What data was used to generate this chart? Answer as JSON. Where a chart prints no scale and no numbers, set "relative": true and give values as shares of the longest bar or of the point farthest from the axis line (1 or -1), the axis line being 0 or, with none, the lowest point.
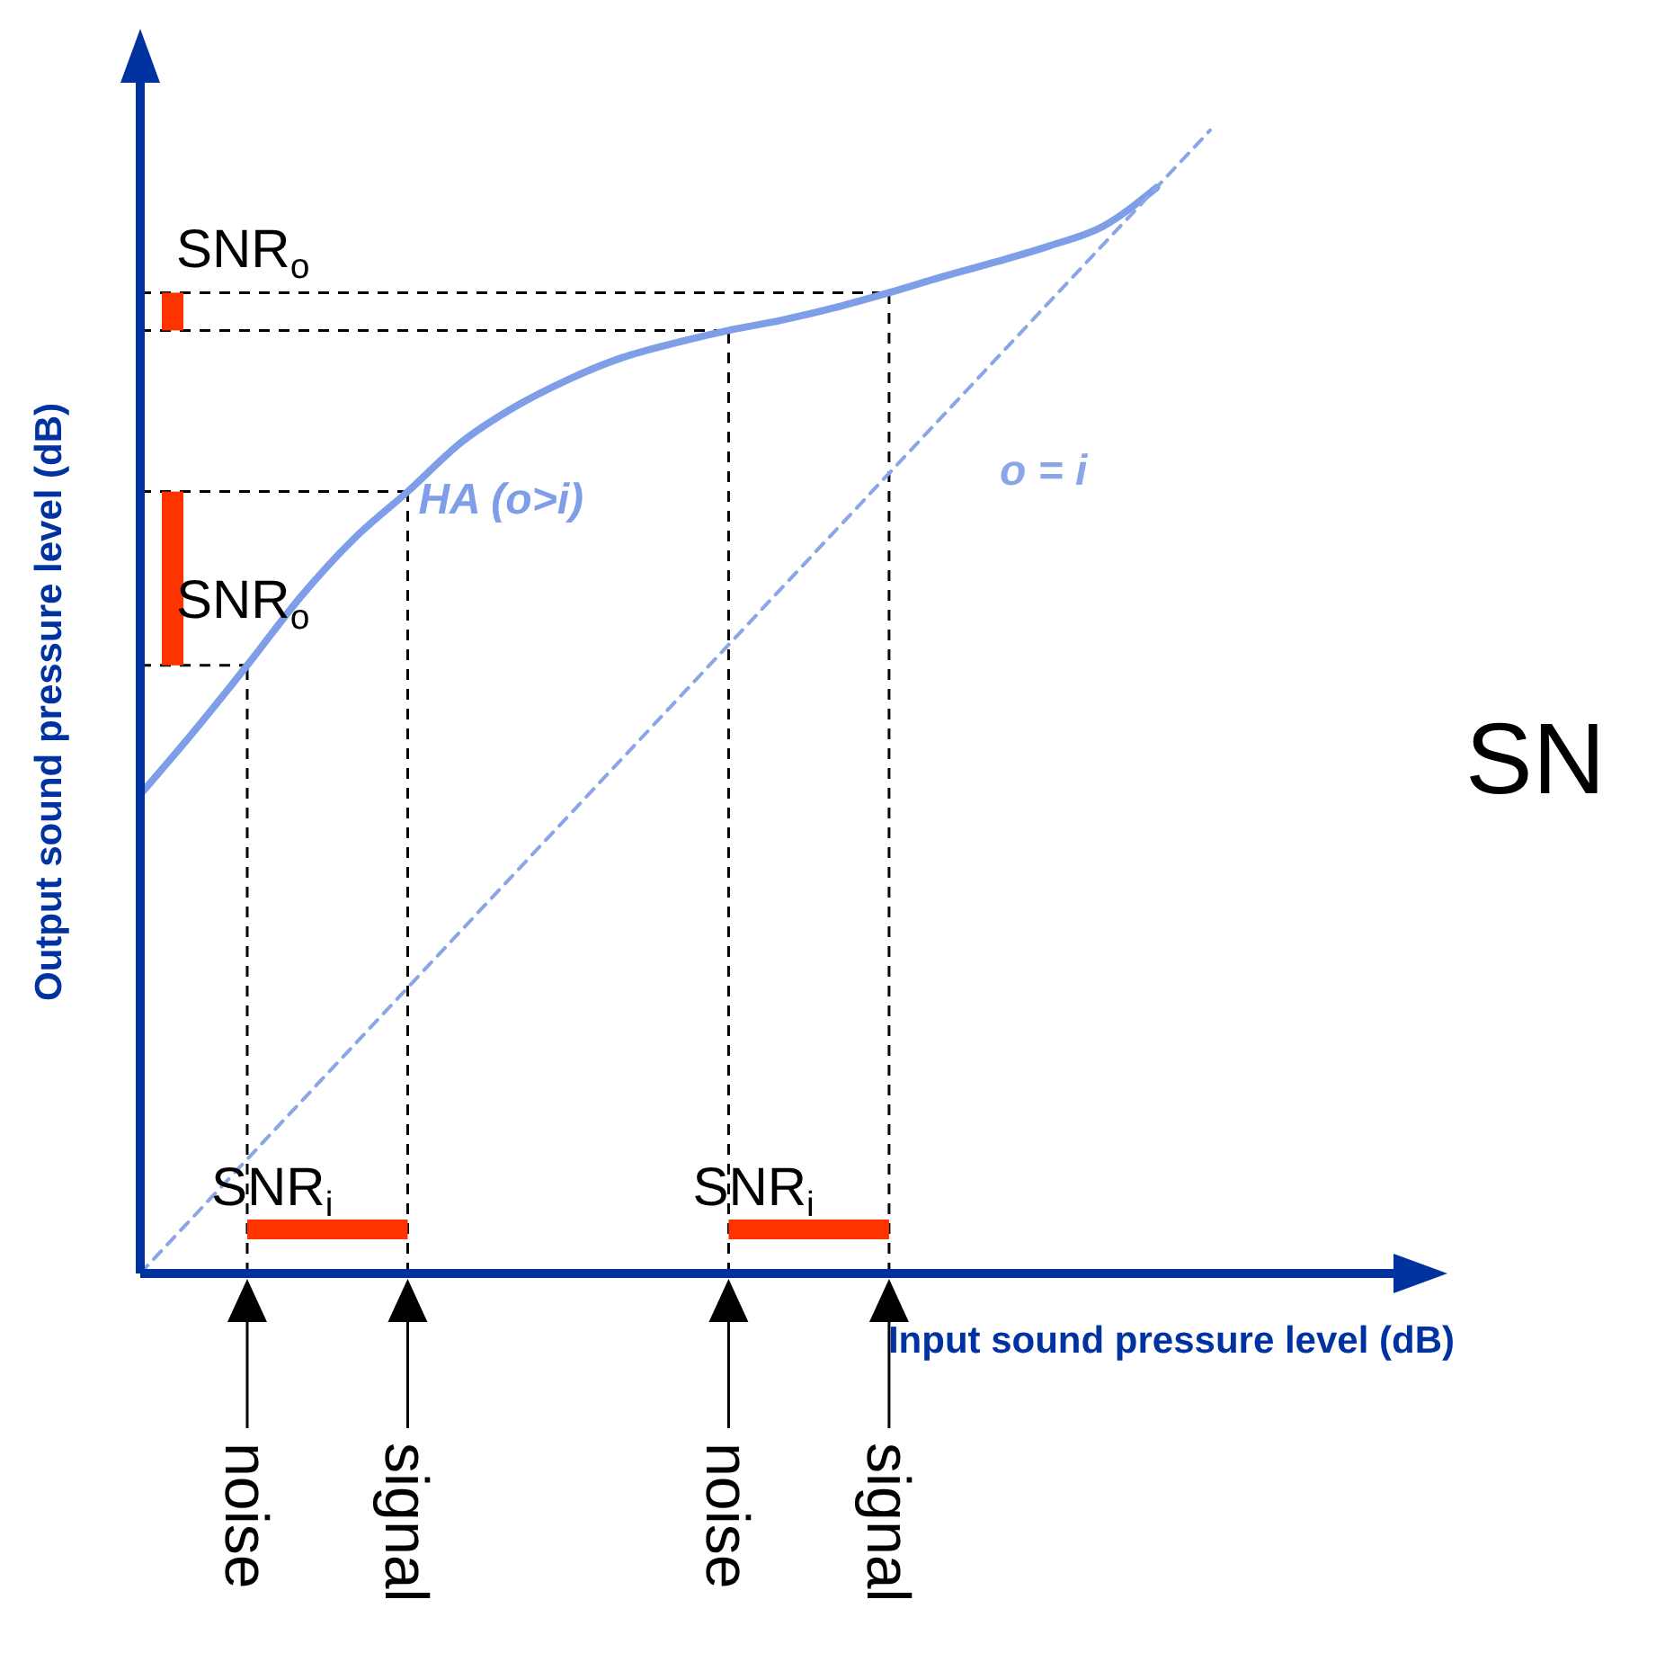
{
  "chart_data": {
    "type": "line",
    "xlabel": "Input sound pressure level (dB)",
    "ylabel": "Output sound pressure level (dB)",
    "relative": true,
    "marker": "none",
    "categories": [
      null,
      null,
      null,
      null,
      null,
      null,
      null,
      null,
      null,
      null,
      null,
      null,
      null,
      null,
      null,
      null,
      null,
      null,
      null,
      null,
      null
    ],
    "series": [
      {
        "name": "HA (o>i)",
        "color": "#7f9ee8",
        "line_style": "solid",
        "values": [
          0.419,
          0.474,
          0.532,
          0.592,
          0.643,
          0.684,
          0.727,
          0.758,
          0.782,
          0.801,
          0.814,
          0.825,
          0.834,
          0.845,
          0.858,
          0.872,
          0.885,
          0.899,
          0.916,
          0.95,
          null
        ]
      },
      {
        "name": "o = i",
        "color": "#8aa6e6",
        "line_style": "dashed",
        "values": [
          0,
          0.05,
          0.1,
          0.15,
          0.2,
          0.25,
          0.3,
          0.35,
          0.4,
          0.45,
          0.5,
          0.55,
          0.6,
          0.65,
          0.7,
          0.75,
          0.8,
          0.85,
          0.9,
          0.95,
          1
        ]
      }
    ],
    "annotations": [
      "SNR$_{o}$",
      "SNR$_{o}$",
      "SNR$_{i}$",
      "SNR$_{i}$",
      "noise",
      "signal",
      "noise",
      "signal",
      "SN"
    ]
  }
}
